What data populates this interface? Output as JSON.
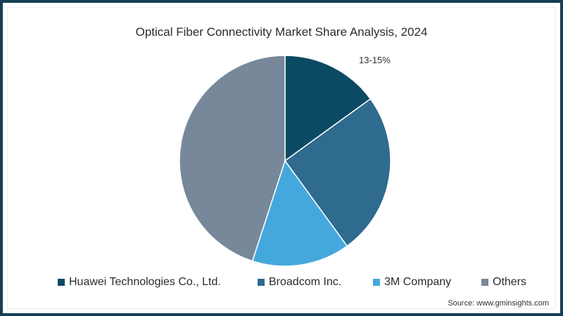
{
  "chart": {
    "title": "Optical Fiber Connectivity Market Share Analysis, 2024",
    "annotation": "13-15%",
    "source": "Source: www.gminsights.com"
  },
  "legend": [
    {
      "label": "Huawei Technologies Co., Ltd.",
      "color": "#0b4a62"
    },
    {
      "label": "Broadcom Inc.",
      "color": "#2e6b8e"
    },
    {
      "label": "3M Company",
      "color": "#45a8dd"
    },
    {
      "label": "Others",
      "color": "#768899"
    }
  ],
  "colors": {
    "frame_border": "#153f52",
    "slice_separator": "#ffffff"
  },
  "chart_data": {
    "type": "pie",
    "title": "Optical Fiber Connectivity Market Share Analysis, 2024",
    "categories": [
      "Huawei Technologies Co., Ltd.",
      "Broadcom Inc.",
      "3M Company",
      "Others"
    ],
    "values": [
      15,
      25,
      15,
      45
    ],
    "unit": "%",
    "colors": [
      "#0b4a62",
      "#2e6b8e",
      "#45a8dd",
      "#768899"
    ],
    "start_angle_deg": 0,
    "direction": "clockwise",
    "annotations": [
      {
        "text": "13-15%",
        "slice": "Huawei Technologies Co., Ltd."
      }
    ],
    "legend_position": "bottom",
    "source": "Source: www.gminsights.com"
  }
}
